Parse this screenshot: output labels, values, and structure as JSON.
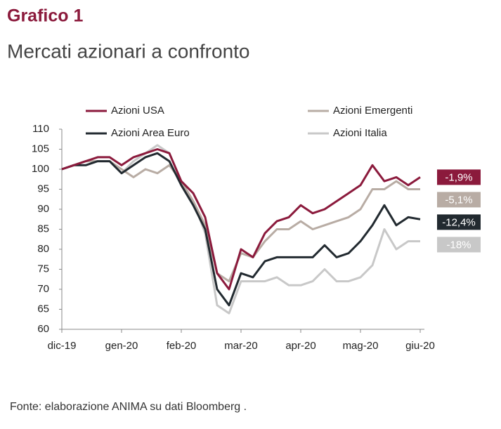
{
  "chart_data": {
    "type": "line",
    "title": "Grafico 1",
    "subtitle": "Mercati azionari a confronto",
    "source": "Fonte: elaborazione ANIMA su dati Bloomberg .",
    "categories": [
      "dic-19",
      null,
      null,
      null,
      null,
      "gen-20",
      null,
      null,
      null,
      null,
      "feb-20",
      null,
      null,
      null,
      null,
      "mar-20",
      null,
      null,
      null,
      null,
      "apr-20",
      null,
      null,
      null,
      null,
      "mag-20",
      null,
      null,
      null,
      null,
      "giu-20"
    ],
    "ylim": [
      60,
      110
    ],
    "yticks": [
      60,
      65,
      70,
      75,
      80,
      85,
      90,
      95,
      100,
      105,
      110
    ],
    "series": [
      {
        "name": "Azioni USA",
        "color": "#8b1a3c",
        "end_label": "-1,9%",
        "values": [
          100,
          101,
          102,
          103,
          103,
          101,
          103,
          104,
          105,
          104,
          97,
          94,
          88,
          74,
          70,
          80,
          78,
          84,
          87,
          88,
          91,
          89,
          90,
          92,
          94,
          96,
          101,
          97,
          98,
          96,
          98
        ]
      },
      {
        "name": "Azioni Emergenti",
        "color": "#b8aca4",
        "end_label": "-5,1%",
        "values": [
          100,
          101,
          102,
          102,
          102,
          100,
          98,
          100,
          99,
          101,
          97,
          92,
          86,
          74,
          72,
          79,
          78,
          82,
          85,
          85,
          87,
          85,
          86,
          87,
          88,
          90,
          95,
          95,
          97,
          95,
          95
        ]
      },
      {
        "name": "Azioni Area Euro",
        "color": "#222a30",
        "end_label": "-12,4%",
        "values": [
          100,
          101,
          101,
          102,
          102,
          99,
          101,
          103,
          104,
          102,
          96,
          91,
          85,
          70,
          66,
          74,
          73,
          77,
          78,
          78,
          78,
          78,
          81,
          78,
          79,
          82,
          86,
          91,
          86,
          88,
          87.5
        ]
      },
      {
        "name": "Azioni Italia",
        "color": "#c8c8c8",
        "end_label": "-18%",
        "values": [
          100,
          101,
          102,
          102,
          102,
          99,
          102,
          104,
          106,
          104,
          97,
          92,
          84,
          66,
          64,
          72,
          72,
          72,
          73,
          71,
          71,
          72,
          75,
          72,
          72,
          73,
          76,
          85,
          80,
          82,
          82
        ]
      }
    ]
  }
}
